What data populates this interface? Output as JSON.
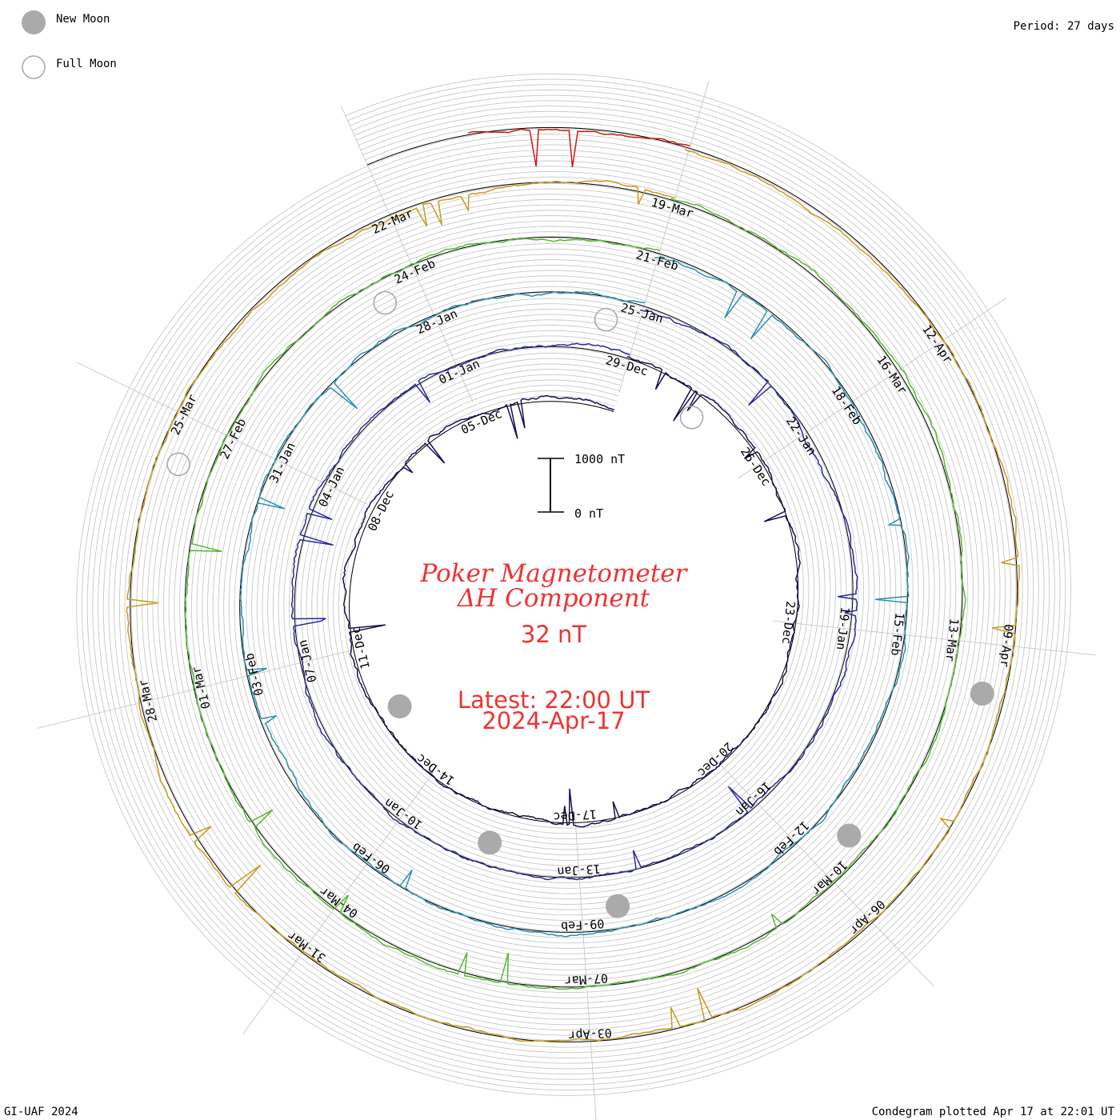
{
  "legend": {
    "new_moon_label": "New Moon",
    "full_moon_label": "Full Moon"
  },
  "period_text": "Period: 27 days",
  "footer_left": "GI-UAF 2024",
  "footer_right": "Condegram plotted Apr 17 at 22:01 UT",
  "scale_bar": {
    "top_label": "1000 nT",
    "bottom_label": "0 nT"
  },
  "center": {
    "title_line1": "Poker Magnetometer",
    "title_line2": "ΔH Component",
    "value_text": "32 nT",
    "latest_line1": "Latest: 22:00 UT",
    "latest_line2": "2024-Apr-17"
  },
  "colors": {
    "title_red": "#ee3333",
    "new_moon_fill": "#aaaaaa",
    "full_moon_stroke": "#aaaaaa",
    "grid": "#c8c8c8"
  },
  "chart_data": {
    "type": "line",
    "subtype": "condegram-spiral",
    "period_days": 27,
    "units": "nT",
    "scale_max_nT": 1000,
    "grid": true,
    "turns": [
      {
        "start": "2023-12-02",
        "end": "2023-12-29",
        "color": "#1a1050",
        "date_labels": [
          "05-Dec",
          "08-Dec",
          "11-Dec",
          "14-Dec",
          "17-Dec",
          "20-Dec",
          "23-Dec",
          "26-Dec",
          "29-Dec"
        ]
      },
      {
        "start": "2023-12-29",
        "end": "2024-01-25",
        "color": "#2a2aa0",
        "date_labels": [
          "01-Jan",
          "04-Jan",
          "07-Jan",
          "10-Jan",
          "13-Jan",
          "16-Jan",
          "19-Jan",
          "22-Jan",
          "25-Jan"
        ]
      },
      {
        "start": "2024-01-25",
        "end": "2024-02-21",
        "color": "#2a90b0",
        "date_labels": [
          "28-Jan",
          "31-Jan",
          "03-Feb",
          "06-Feb",
          "09-Feb",
          "12-Feb",
          "15-Feb",
          "18-Feb",
          "21-Feb"
        ]
      },
      {
        "start": "2024-02-21",
        "end": "2024-03-19",
        "color": "#55b830",
        "date_labels": [
          "24-Feb",
          "27-Feb",
          "01-Mar",
          "04-Mar",
          "07-Mar",
          "10-Mar",
          "13-Mar",
          "16-Mar",
          "19-Mar"
        ]
      },
      {
        "start": "2024-03-19",
        "end": "2024-04-15",
        "color": "#c89a20",
        "date_labels": [
          "22-Mar",
          "25-Mar",
          "28-Mar",
          "31-Mar",
          "03-Apr",
          "06-Apr",
          "09-Apr",
          "12-Apr"
        ]
      },
      {
        "start": "2024-04-15",
        "end": "2024-04-17",
        "color": "#cc1a10",
        "date_labels": []
      }
    ],
    "new_moon_dates": [
      "2023-12-12",
      "2024-01-11",
      "2024-02-09",
      "2024-03-10",
      "2024-04-08"
    ],
    "full_moon_dates": [
      "2023-12-27",
      "2024-01-25",
      "2024-02-24",
      "2024-03-25"
    ],
    "latest_value_nT": 32,
    "latest_time": "2024-04-17 22:00 UT"
  }
}
